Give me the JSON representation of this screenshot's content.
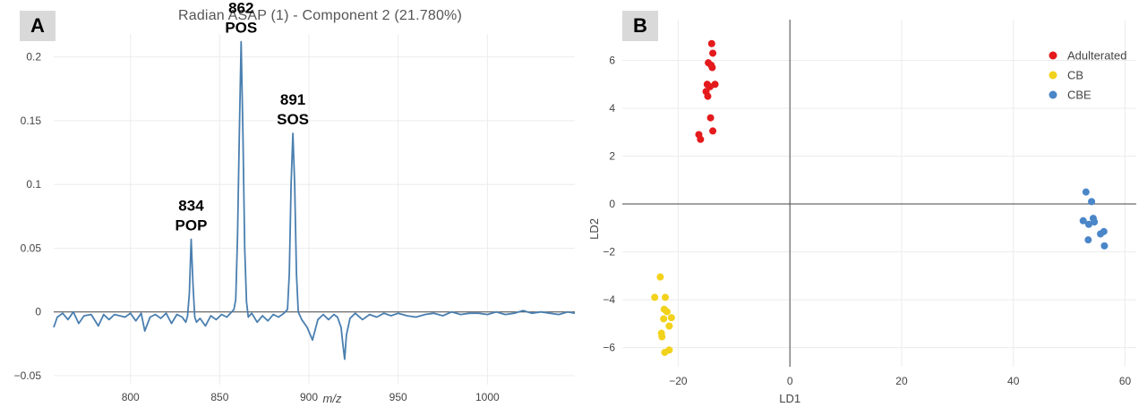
{
  "panels": {
    "a_label": "A",
    "b_label": "B"
  },
  "colors": {
    "spectrum_line": "#4a7fb0",
    "adulterated": "#e41a1c",
    "cb": "#f2d21b",
    "cbe": "#4a86c8",
    "grid": "#ececec",
    "zero_line": "#444444"
  },
  "chart_data": [
    {
      "type": "line",
      "title": "Radian ASAP (1) - Component 2 (21.780%)",
      "xlabel": "m/z",
      "ylabel": "",
      "xlim": [
        757,
        1049
      ],
      "ylim": [
        -0.057,
        0.218
      ],
      "x_ticks": [
        800,
        850,
        900,
        950,
        1000
      ],
      "y_ticks": [
        -0.05,
        0,
        0.05,
        0.1,
        0.15,
        0.2
      ],
      "y_tick_labels": [
        "−0.05",
        "0",
        "0.05",
        "0.1",
        "0.15",
        "0.2"
      ],
      "grid": true,
      "series": [
        {
          "x": [
            757,
            759,
            762,
            765,
            768,
            771,
            774,
            778,
            782,
            785,
            788,
            791,
            794,
            797,
            800,
            803,
            806,
            808,
            811,
            814,
            817,
            820,
            823,
            826,
            829,
            831,
            832,
            833,
            834,
            835,
            836,
            837,
            839,
            842,
            845,
            848,
            851,
            854,
            856,
            858,
            859,
            860,
            861,
            862,
            863,
            864,
            865,
            866,
            868,
            871,
            874,
            877,
            880,
            883,
            886,
            888,
            889,
            890,
            891,
            892,
            893,
            894,
            896,
            899,
            902,
            905,
            908,
            911,
            914,
            916,
            918,
            919,
            920,
            921,
            923,
            926,
            930,
            934,
            938,
            942,
            946,
            950,
            955,
            960,
            965,
            970,
            975,
            980,
            985,
            990,
            995,
            1000,
            1005,
            1010,
            1015,
            1020,
            1025,
            1030,
            1035,
            1040,
            1045,
            1049
          ],
          "y": [
            -0.012,
            -0.004,
            -0.001,
            -0.006,
            0.0,
            -0.009,
            -0.003,
            -0.002,
            -0.011,
            -0.002,
            -0.006,
            -0.002,
            -0.003,
            -0.004,
            -0.001,
            -0.007,
            -0.001,
            -0.015,
            -0.004,
            -0.002,
            -0.005,
            -0.001,
            -0.009,
            -0.002,
            -0.004,
            -0.008,
            -0.003,
            0.015,
            0.057,
            0.022,
            -0.004,
            -0.008,
            -0.005,
            -0.011,
            -0.003,
            -0.006,
            -0.002,
            -0.004,
            -0.001,
            0.002,
            0.01,
            0.06,
            0.14,
            0.212,
            0.14,
            0.05,
            0.008,
            -0.004,
            -0.001,
            -0.008,
            -0.003,
            -0.007,
            -0.002,
            -0.004,
            -0.001,
            0.002,
            0.03,
            0.1,
            0.14,
            0.1,
            0.03,
            0.0,
            -0.006,
            -0.012,
            -0.022,
            -0.006,
            -0.002,
            -0.006,
            -0.002,
            -0.004,
            -0.012,
            -0.025,
            -0.037,
            -0.018,
            -0.005,
            -0.001,
            -0.006,
            -0.002,
            -0.004,
            -0.001,
            -0.003,
            -0.001,
            -0.003,
            -0.004,
            -0.002,
            -0.001,
            -0.003,
            0.0,
            -0.002,
            -0.001,
            -0.001,
            -0.002,
            0.0,
            -0.002,
            -0.001,
            0.001,
            -0.001,
            0.0,
            -0.001,
            -0.002,
            0.0,
            -0.001
          ]
        }
      ],
      "annotations": [
        {
          "x": 834,
          "y": 0.057,
          "mass": "834",
          "label": "POP"
        },
        {
          "x": 862,
          "y": 0.212,
          "mass": "862",
          "label": "POS"
        },
        {
          "x": 891,
          "y": 0.14,
          "mass": "891",
          "label": "SOS"
        }
      ]
    },
    {
      "type": "scatter",
      "xlabel": "LD1",
      "ylabel": "LD2",
      "xlim": [
        -30,
        62
      ],
      "ylim": [
        -6.8,
        7.7
      ],
      "x_ticks": [
        -20,
        0,
        20,
        40,
        60
      ],
      "x_tick_labels": [
        "−20",
        "0",
        "20",
        "40",
        "60"
      ],
      "y_ticks": [
        -6,
        -4,
        -2,
        0,
        2,
        4,
        6
      ],
      "y_tick_labels": [
        "−6",
        "−4",
        "−2",
        "0",
        "2",
        "4",
        "6"
      ],
      "grid": true,
      "legend_position": "top-right",
      "series": [
        {
          "name": "Adulterated",
          "x": [
            -14.0,
            -13.8,
            -14.6,
            -14.1,
            -13.9,
            -14.8,
            -13.4,
            -14.3,
            -15.0,
            -14.7,
            -14.2,
            -13.8,
            -16.3,
            -16.0
          ],
          "y": [
            6.7,
            6.3,
            5.9,
            5.8,
            5.7,
            5.0,
            5.0,
            4.9,
            4.7,
            4.5,
            3.6,
            3.05,
            2.9,
            2.7
          ]
        },
        {
          "name": "CB",
          "x": [
            -23.2,
            -24.2,
            -22.3,
            -22.5,
            -22.0,
            -21.2,
            -22.6,
            -21.6,
            -23.0,
            -22.9,
            -21.6,
            -22.4
          ],
          "y": [
            -3.05,
            -3.9,
            -3.9,
            -4.4,
            -4.5,
            -4.75,
            -4.8,
            -5.1,
            -5.4,
            -5.55,
            -6.1,
            -6.2
          ]
        },
        {
          "name": "CBE",
          "x": [
            53.0,
            54.0,
            52.5,
            54.3,
            53.5,
            54.5,
            56.2,
            55.6,
            53.4,
            56.3
          ],
          "y": [
            0.5,
            0.1,
            -0.7,
            -0.6,
            -0.85,
            -0.75,
            -1.15,
            -1.25,
            -1.5,
            -1.75
          ]
        }
      ]
    }
  ]
}
